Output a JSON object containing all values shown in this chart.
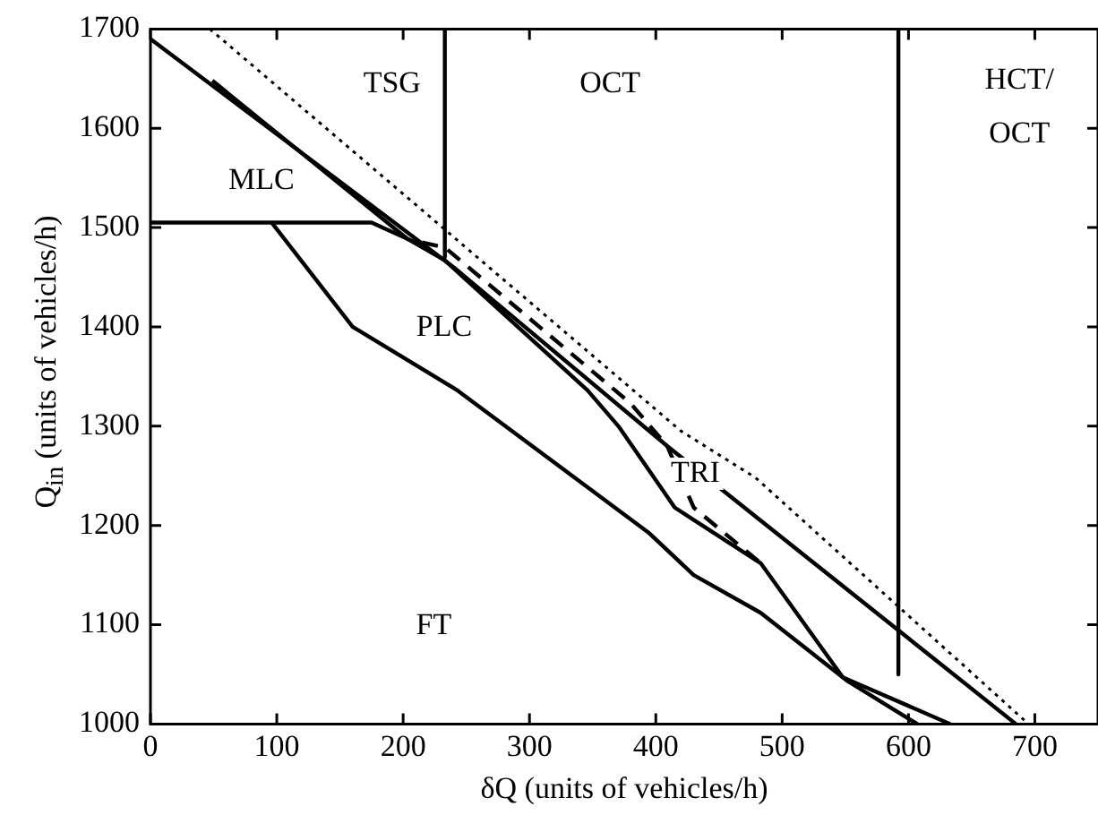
{
  "chart_data": {
    "type": "line",
    "xlabel": "δQ (units of vehicles/h)",
    "ylabel": "Q$_{in}$ (units of vehicles/h)",
    "xlim": [
      0,
      750
    ],
    "ylim": [
      1000,
      1700
    ],
    "xticks": [
      0,
      100,
      200,
      300,
      400,
      500,
      600,
      700
    ],
    "yticks": [
      1000,
      1100,
      1200,
      1300,
      1400,
      1500,
      1600,
      1700
    ],
    "grid": false,
    "legend": false,
    "marker": "none",
    "series": [
      {
        "color": "#000000",
        "line_style": "dotted",
        "x": [
          47,
          420,
          479,
          695
        ],
        "values": [
          1700,
          1295,
          1248,
          1000
        ]
      },
      {
        "color": "#000000",
        "line_style": "solid",
        "x": [
          0,
          240,
          409,
          685
        ],
        "values": [
          1690,
          1460,
          1280,
          1000
        ]
      },
      {
        "color": "#000000",
        "line_style": "solid",
        "x": [
          49,
          203,
          233,
          346,
          371,
          415,
          483,
          548,
          633
        ],
        "values": [
          1648,
          1489,
          1467,
          1336,
          1299,
          1218,
          1162,
          1047,
          1000
        ]
      },
      {
        "color": "#000000",
        "line_style": "solid",
        "x": [
          0,
          175,
          215
        ],
        "values": [
          1505,
          1505,
          1482
        ]
      },
      {
        "color": "#000000",
        "line_style": "solid",
        "x": [
          96,
          160,
          243,
          395,
          430,
          483,
          552,
          607
        ],
        "values": [
          1505,
          1400,
          1336,
          1192,
          1150,
          1112,
          1043,
          1000
        ]
      },
      {
        "color": "#000000",
        "line_style": "dashed",
        "x": [
          215,
          233,
          380,
          409,
          430,
          483
        ],
        "values": [
          1485,
          1480,
          1323,
          1280,
          1218,
          1162
        ]
      },
      {
        "color": "#000000",
        "line_style": "solid",
        "x": [
          233,
          233
        ],
        "values": [
          1700,
          1470
        ]
      },
      {
        "color": "#000000",
        "line_style": "solid",
        "x": [
          592,
          592
        ],
        "values": [
          1700,
          1050
        ]
      }
    ],
    "annotations": [
      "TSG",
      "OCT",
      "HCT/",
      "OCT",
      "MLC",
      "PLC",
      "TRI",
      "FT"
    ]
  }
}
